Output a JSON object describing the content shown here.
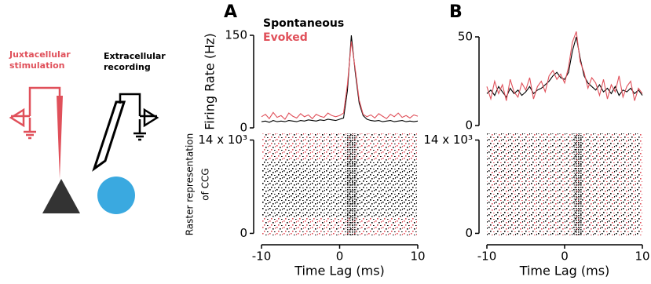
{
  "schematic": {
    "stim_label": [
      "Juxtacellular",
      "stimulation"
    ],
    "rec_label": [
      "Extracellular",
      "recording"
    ]
  },
  "chart_data": [
    {
      "type": "line",
      "label": "A",
      "ylabel": "Firing Rate (Hz)",
      "xlim": [
        -10,
        10
      ],
      "ylim": [
        0,
        150
      ],
      "yticks": [
        0,
        150
      ],
      "x": [
        -10,
        -9.5,
        -9,
        -8.5,
        -8,
        -7.5,
        -7,
        -6.5,
        -6,
        -5.5,
        -5,
        -4.5,
        -4,
        -3.5,
        -3,
        -2.5,
        -2,
        -1.5,
        -1,
        -0.5,
        0,
        0.5,
        1,
        1.5,
        2,
        2.5,
        3,
        3.5,
        4,
        4.5,
        5,
        5.5,
        6,
        6.5,
        7,
        7.5,
        8,
        8.5,
        9,
        9.5,
        10
      ],
      "series": [
        {
          "name": "Spontaneous",
          "color": "#000000",
          "values": [
            10,
            11,
            9,
            12,
            10,
            11,
            10,
            12,
            11,
            10,
            12,
            11,
            13,
            12,
            11,
            13,
            12,
            14,
            13,
            12,
            14,
            16,
            60,
            150,
            90,
            40,
            20,
            14,
            12,
            11,
            12,
            10,
            11,
            12,
            10,
            11,
            12,
            10,
            11,
            10,
            11
          ]
        },
        {
          "name": "Evoked",
          "color": "#e0505a",
          "values": [
            18,
            22,
            15,
            25,
            17,
            20,
            14,
            24,
            19,
            16,
            23,
            18,
            21,
            15,
            22,
            19,
            17,
            24,
            20,
            18,
            20,
            24,
            70,
            140,
            95,
            45,
            22,
            18,
            21,
            16,
            23,
            19,
            15,
            22,
            18,
            24,
            17,
            20,
            16,
            21,
            19
          ]
        }
      ]
    },
    {
      "type": "raster",
      "ylabel": [
        "Raster representation",
        "of CCG"
      ],
      "xlabel": "Time Lag (ms)",
      "xlim": [
        -10,
        10
      ],
      "xticks": [
        -10,
        0,
        10
      ],
      "ylim": [
        -300,
        15000
      ],
      "yticks": [
        0,
        {
          "value": 14000,
          "label": "14 x 10³"
        }
      ],
      "blocks": [
        {
          "from": -300,
          "to": 2500,
          "colors": [
            "#e0505a",
            "#000000"
          ]
        },
        {
          "from": 2500,
          "to": 11000,
          "colors": [
            "#000000"
          ]
        },
        {
          "from": 11000,
          "to": 15000,
          "colors": [
            "#e0505a",
            "#000000"
          ]
        }
      ],
      "peak": [
        0.8,
        2.2
      ]
    },
    {
      "type": "line",
      "label": "B",
      "xlim": [
        -10,
        10
      ],
      "ylim": [
        0,
        50
      ],
      "yticks": [
        0,
        50
      ],
      "x": [
        -10,
        -9.5,
        -9,
        -8.5,
        -8,
        -7.5,
        -7,
        -6.5,
        -6,
        -5.5,
        -5,
        -4.5,
        -4,
        -3.5,
        -3,
        -2.5,
        -2,
        -1.5,
        -1,
        -0.5,
        0,
        0.5,
        1,
        1.5,
        2,
        2.5,
        3,
        3.5,
        4,
        4.5,
        5,
        5.5,
        6,
        6.5,
        7,
        7.5,
        8,
        8.5,
        9,
        9.5,
        10
      ],
      "series": [
        {
          "color": "#000000",
          "values": [
            18,
            20,
            17,
            22,
            19,
            16,
            21,
            18,
            20,
            17,
            19,
            22,
            18,
            20,
            21,
            23,
            25,
            28,
            30,
            27,
            26,
            30,
            42,
            50,
            38,
            28,
            24,
            22,
            20,
            23,
            19,
            21,
            18,
            22,
            17,
            20,
            19,
            21,
            18,
            20,
            17
          ]
        },
        {
          "color": "#e0505a",
          "values": [
            22,
            15,
            25,
            18,
            23,
            14,
            26,
            19,
            16,
            24,
            20,
            27,
            15,
            22,
            25,
            19,
            28,
            31,
            26,
            29,
            24,
            33,
            47,
            53,
            36,
            30,
            21,
            27,
            24,
            17,
            26,
            15,
            23,
            19,
            28,
            16,
            22,
            25,
            14,
            21,
            18
          ]
        }
      ]
    },
    {
      "type": "raster",
      "xlabel": "Time Lag (ms)",
      "xlim": [
        -10,
        10
      ],
      "xticks": [
        -10,
        0,
        10
      ],
      "ylim": [
        -300,
        15000
      ],
      "yticks": [
        0,
        {
          "value": 14000,
          "label": "14 x 10³"
        }
      ],
      "blocks": [
        {
          "from": -300,
          "to": 15000,
          "colors": [
            "#000000",
            "#e0505a"
          ]
        }
      ],
      "peak": [
        1.2,
        2.2
      ]
    }
  ]
}
